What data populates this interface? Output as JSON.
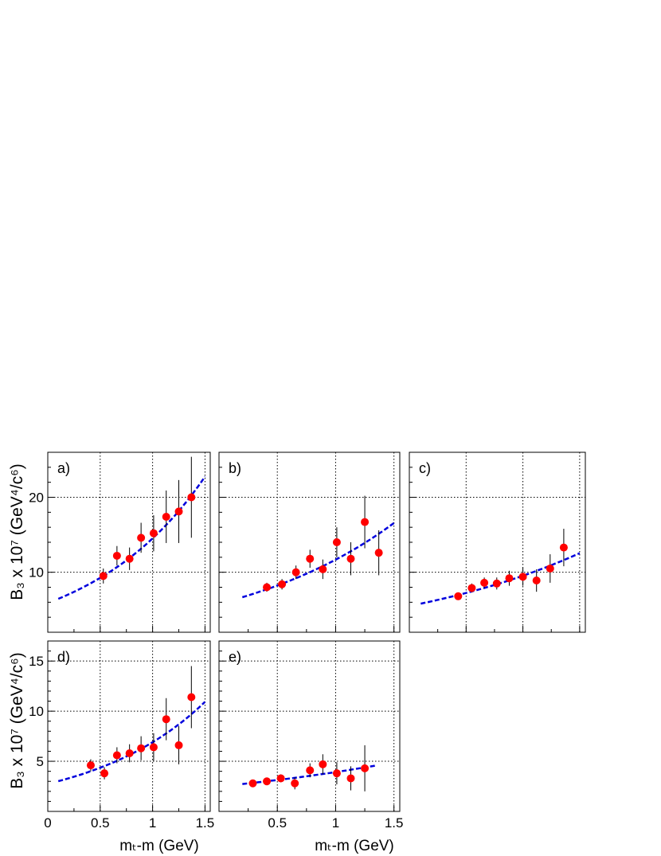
{
  "ylabel_top": "B₃ x 10⁷ (GeV⁴/c⁶)",
  "ylabel_bottom": "B₃ x 10⁷ (GeV⁴/c⁶)",
  "xlabel": "mₜ-m (GeV)",
  "colors": {
    "points": "#ff0000",
    "fit": "#0000dd",
    "errors": "#000000",
    "grid": "#000000"
  },
  "chart_data": [
    {
      "panel": "a)",
      "type": "scatter",
      "xlim": [
        0,
        1.55
      ],
      "ylim": [
        2,
        26
      ],
      "grid": true,
      "yticks": [
        "10",
        "20"
      ],
      "xticks": [],
      "points": [
        {
          "x": 0.53,
          "y": 9.5,
          "err": 1.0
        },
        {
          "x": 0.66,
          "y": 12.2,
          "err": 1.3
        },
        {
          "x": 0.78,
          "y": 11.8,
          "err": 1.5
        },
        {
          "x": 0.89,
          "y": 14.6,
          "err": 2.0
        },
        {
          "x": 1.01,
          "y": 15.2,
          "err": 2.4
        },
        {
          "x": 1.13,
          "y": 17.4,
          "err": 3.5
        },
        {
          "x": 1.25,
          "y": 18.1,
          "err": 4.2
        },
        {
          "x": 1.37,
          "y": 20.0,
          "err": 5.4
        }
      ],
      "fit": {
        "a": 5.9,
        "b": 0.9,
        "x0": 0.1,
        "x1": 1.5
      }
    },
    {
      "panel": "b)",
      "type": "scatter",
      "xlim": [
        0,
        1.55
      ],
      "ylim": [
        2,
        26
      ],
      "grid": true,
      "yticks": [],
      "xticks": [],
      "points": [
        {
          "x": 0.41,
          "y": 8.0,
          "err": 0.6
        },
        {
          "x": 0.54,
          "y": 8.4,
          "err": 0.7
        },
        {
          "x": 0.66,
          "y": 10.0,
          "err": 0.9
        },
        {
          "x": 0.78,
          "y": 11.8,
          "err": 1.2
        },
        {
          "x": 0.89,
          "y": 10.4,
          "err": 1.3
        },
        {
          "x": 1.01,
          "y": 14.0,
          "err": 2.0
        },
        {
          "x": 1.13,
          "y": 11.8,
          "err": 2.2
        },
        {
          "x": 1.25,
          "y": 16.7,
          "err": 3.5
        },
        {
          "x": 1.37,
          "y": 12.6,
          "err": 3.0
        }
      ],
      "fit": {
        "a": 5.8,
        "b": 0.7,
        "x0": 0.2,
        "x1": 1.5
      }
    },
    {
      "panel": "c)",
      "type": "scatter",
      "xlim": [
        0,
        1.55
      ],
      "ylim": [
        2,
        26
      ],
      "grid": true,
      "yticks": [],
      "xticks": [],
      "points": [
        {
          "x": 0.43,
          "y": 6.8,
          "err": 0.5
        },
        {
          "x": 0.55,
          "y": 7.9,
          "err": 0.6
        },
        {
          "x": 0.66,
          "y": 8.6,
          "err": 0.7
        },
        {
          "x": 0.77,
          "y": 8.5,
          "err": 0.8
        },
        {
          "x": 0.88,
          "y": 9.2,
          "err": 1.0
        },
        {
          "x": 1.0,
          "y": 9.4,
          "err": 1.2
        },
        {
          "x": 1.12,
          "y": 8.9,
          "err": 1.5
        },
        {
          "x": 1.24,
          "y": 10.5,
          "err": 1.9
        },
        {
          "x": 1.36,
          "y": 13.3,
          "err": 2.5
        }
      ],
      "fit": {
        "a": 5.5,
        "b": 0.55,
        "x0": 0.1,
        "x1": 1.5
      }
    },
    {
      "panel": "d)",
      "type": "scatter",
      "xlim": [
        0,
        1.55
      ],
      "ylim": [
        0,
        17
      ],
      "grid": true,
      "yticks": [
        "5",
        "10",
        "15"
      ],
      "xticks": [
        "0",
        "0.5",
        "1",
        "1.5"
      ],
      "points": [
        {
          "x": 0.41,
          "y": 4.6,
          "err": 0.6
        },
        {
          "x": 0.54,
          "y": 3.8,
          "err": 0.6
        },
        {
          "x": 0.66,
          "y": 5.6,
          "err": 0.8
        },
        {
          "x": 0.78,
          "y": 5.8,
          "err": 0.9
        },
        {
          "x": 0.89,
          "y": 6.3,
          "err": 1.2
        },
        {
          "x": 1.01,
          "y": 6.4,
          "err": 1.4
        },
        {
          "x": 1.13,
          "y": 9.2,
          "err": 2.1
        },
        {
          "x": 1.25,
          "y": 6.6,
          "err": 1.9
        },
        {
          "x": 1.37,
          "y": 11.4,
          "err": 3.1
        }
      ],
      "fit": {
        "a": 2.75,
        "b": 0.92,
        "x0": 0.1,
        "x1": 1.5
      }
    },
    {
      "panel": "e)",
      "type": "scatter",
      "xlim": [
        0,
        1.55
      ],
      "ylim": [
        0,
        17
      ],
      "grid": true,
      "yticks": [],
      "xticks": [
        "0.5",
        "1",
        "1.5"
      ],
      "points": [
        {
          "x": 0.29,
          "y": 2.8,
          "err": 0.2
        },
        {
          "x": 0.41,
          "y": 3.0,
          "err": 0.25
        },
        {
          "x": 0.53,
          "y": 3.3,
          "err": 0.4
        },
        {
          "x": 0.65,
          "y": 2.8,
          "err": 0.6
        },
        {
          "x": 0.78,
          "y": 4.1,
          "err": 0.7
        },
        {
          "x": 0.89,
          "y": 4.7,
          "err": 1.0
        },
        {
          "x": 1.01,
          "y": 3.8,
          "err": 1.1
        },
        {
          "x": 1.13,
          "y": 3.3,
          "err": 1.2
        },
        {
          "x": 1.25,
          "y": 4.3,
          "err": 2.3
        }
      ],
      "fit": {
        "a": 2.5,
        "b": 0.45,
        "x0": 0.2,
        "x1": 1.35
      }
    }
  ]
}
